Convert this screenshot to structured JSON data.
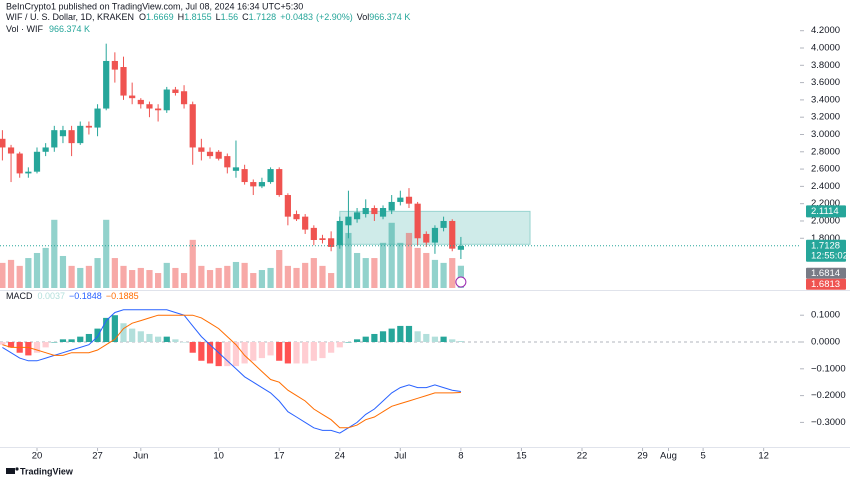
{
  "header": {
    "published": "BeInCrypto1 published on TradingView.com, Jul 08, 2024 16:34 UTC+5:30"
  },
  "chart_data": {
    "type": "candlestick",
    "symbol": "WIF / U. S. Dollar, 1D, KRAKEN",
    "ohlc_prefixes": [
      "O",
      "H",
      "L",
      "C"
    ],
    "open": [
      2.95,
      2.85,
      2.78,
      2.55,
      2.57,
      2.8,
      2.85,
      2.98,
      3.05,
      2.9,
      3.1,
      3.08,
      3.3,
      3.85,
      3.78,
      3.45,
      3.4,
      3.35,
      3.3,
      3.28,
      3.52,
      3.5,
      3.35,
      2.85,
      2.8,
      2.8,
      2.75,
      2.58,
      2.6,
      2.45,
      2.4,
      2.45,
      2.6,
      2.3,
      2.08,
      2.05,
      1.92,
      1.8,
      1.8,
      1.72,
      1.95,
      2.02,
      2.08,
      2.15,
      2.05,
      2.12,
      2.22,
      2.28,
      2.2,
      1.85,
      1.75,
      1.92,
      2.0,
      1.6669
    ],
    "high": [
      3.05,
      2.88,
      2.8,
      2.62,
      2.85,
      2.9,
      3.1,
      3.1,
      3.1,
      3.15,
      3.15,
      3.35,
      4.05,
      3.95,
      3.9,
      3.6,
      3.42,
      3.38,
      3.35,
      3.55,
      3.55,
      3.57,
      3.38,
      2.95,
      2.85,
      2.82,
      2.78,
      2.93,
      2.65,
      2.48,
      2.5,
      2.62,
      2.62,
      2.32,
      2.12,
      2.08,
      1.95,
      1.84,
      1.88,
      2.05,
      2.35,
      2.15,
      2.25,
      2.18,
      2.18,
      2.3,
      2.35,
      2.38,
      2.22,
      1.88,
      1.95,
      2.05,
      2.02,
      1.8155
    ],
    "low": [
      2.7,
      2.45,
      2.5,
      2.5,
      2.55,
      2.75,
      2.8,
      2.9,
      2.75,
      2.88,
      3.0,
      2.98,
      3.28,
      3.6,
      3.4,
      3.35,
      3.3,
      3.2,
      3.15,
      3.25,
      3.45,
      3.3,
      2.65,
      2.7,
      2.72,
      2.7,
      2.55,
      2.5,
      2.42,
      2.3,
      2.38,
      2.43,
      2.28,
      1.95,
      2.0,
      1.85,
      1.72,
      1.74,
      1.65,
      1.68,
      1.8,
      1.98,
      2.04,
      2.0,
      2.02,
      2.08,
      2.18,
      2.15,
      1.72,
      1.7,
      1.62,
      1.88,
      1.65,
      1.56
    ],
    "close": [
      2.85,
      2.78,
      2.55,
      2.57,
      2.8,
      2.85,
      3.05,
      3.05,
      2.9,
      3.1,
      3.08,
      3.3,
      3.85,
      3.75,
      3.45,
      3.42,
      3.35,
      3.3,
      3.28,
      3.52,
      3.48,
      3.35,
      2.85,
      2.8,
      2.75,
      2.72,
      2.62,
      2.62,
      2.45,
      2.4,
      2.45,
      2.6,
      2.3,
      2.05,
      2.02,
      1.9,
      1.78,
      1.78,
      1.7,
      2.0,
      2.05,
      2.1,
      2.15,
      2.08,
      2.15,
      2.22,
      2.27,
      2.2,
      1.8,
      1.75,
      1.92,
      2.0,
      1.68,
      1.7128
    ],
    "change": {
      "value": 0.0483,
      "label": "+0.0483"
    },
    "change_pct": {
      "value": 2.9,
      "label": "(+2.90%)"
    },
    "up_color": "#26a69a",
    "down_color": "#ef5350",
    "ylim": [
      1.225,
      4.555
    ],
    "yticks": [
      {
        "value": 4.2,
        "label": "4.2000"
      },
      {
        "value": 4.0,
        "label": "4.0000"
      },
      {
        "value": 3.8,
        "label": "3.8000"
      },
      {
        "value": 3.6,
        "label": "3.6000"
      },
      {
        "value": 3.4,
        "label": "3.4000"
      },
      {
        "value": 3.2,
        "label": "3.2000"
      },
      {
        "value": 3.0,
        "label": "3.0000"
      },
      {
        "value": 2.8,
        "label": "2.8000"
      },
      {
        "value": 2.6,
        "label": "2.6000"
      },
      {
        "value": 2.4,
        "label": "2.4000"
      },
      {
        "value": 2.2,
        "label": "2.2000"
      },
      {
        "value": 2.0,
        "label": "2.0000"
      },
      {
        "value": 1.8,
        "label": "1.8000"
      }
    ],
    "xlim": [
      -0.277,
      92.2
    ],
    "xticks": [
      {
        "value": 4,
        "label": "20"
      },
      {
        "value": 11,
        "label": "27"
      },
      {
        "value": 16,
        "label": "Jun"
      },
      {
        "value": 25,
        "label": "10"
      },
      {
        "value": 32,
        "label": "17"
      },
      {
        "value": 39,
        "label": "24"
      },
      {
        "value": 46,
        "label": "Jul"
      },
      {
        "value": 53,
        "label": "8"
      },
      {
        "value": 60,
        "label": "15"
      },
      {
        "value": 67,
        "label": "22"
      },
      {
        "value": 74,
        "label": "29"
      },
      {
        "value": 77,
        "label": "Aug"
      },
      {
        "value": 81,
        "label": "5"
      },
      {
        "value": 88,
        "label": "12"
      }
    ],
    "volume": {
      "prefix": "Vol",
      "name": "Vol · WIF",
      "last_label": "966.374 K",
      "ylim": [
        0,
        12500
      ],
      "values": [
        1090,
        1220,
        960,
        1300,
        1520,
        1740,
        2960,
        1390,
        960,
        870,
        960,
        1300,
        2960,
        1300,
        960,
        780,
        870,
        780,
        650,
        1090,
        870,
        650,
        2090,
        960,
        780,
        870,
        960,
        1130,
        1090,
        650,
        780,
        870,
        1650,
        960,
        870,
        1090,
        1300,
        960,
        650,
        1960,
        2390,
        1520,
        1300,
        1300,
        1960,
        2830,
        1960,
        2390,
        1740,
        1520,
        1220,
        1090,
        1300,
        966.374
      ]
    },
    "zone": {
      "top": 2.1114,
      "bottom": 1.73,
      "start": 39,
      "end": 61,
      "color": "#26a69a"
    },
    "countdown": "12:55:02",
    "price_labels": [
      {
        "value": 2.1114,
        "color": "#26a69a"
      },
      {
        "value": 1.6814,
        "color": "#787b86"
      },
      {
        "value": 1.6813,
        "color": "#ef5350"
      }
    ],
    "macd": {
      "name": "MACD",
      "macd_color": "#2962ff",
      "signal_color": "#ff6d00",
      "value_labels": {
        "hist": "0.0037",
        "macd": "−0.1848",
        "signal": "−0.1885"
      },
      "hist": [
        -0.01,
        -0.02,
        -0.04,
        -0.05,
        -0.04,
        -0.02,
        0.0,
        0.01,
        0.01,
        0.02,
        0.03,
        0.05,
        0.09,
        0.1,
        0.07,
        0.05,
        0.04,
        0.03,
        0.02,
        0.02,
        0.01,
        0.0,
        -0.04,
        -0.07,
        -0.08,
        -0.09,
        -0.09,
        -0.09,
        -0.08,
        -0.07,
        -0.06,
        -0.05,
        -0.07,
        -0.08,
        -0.08,
        -0.08,
        -0.07,
        -0.06,
        -0.04,
        -0.02,
        0.0,
        0.01,
        0.02,
        0.03,
        0.04,
        0.05,
        0.06,
        0.06,
        0.04,
        0.03,
        0.02,
        0.02,
        0.01,
        0.0037
      ],
      "macd": [
        -0.02,
        -0.04,
        -0.06,
        -0.07,
        -0.07,
        -0.06,
        -0.05,
        -0.04,
        -0.03,
        -0.02,
        -0.01,
        0.02,
        0.08,
        0.11,
        0.12,
        0.12,
        0.12,
        0.12,
        0.12,
        0.12,
        0.11,
        0.1,
        0.06,
        0.02,
        -0.01,
        -0.04,
        -0.07,
        -0.1,
        -0.13,
        -0.15,
        -0.17,
        -0.19,
        -0.22,
        -0.26,
        -0.28,
        -0.3,
        -0.32,
        -0.33,
        -0.33,
        -0.34,
        -0.32,
        -0.3,
        -0.27,
        -0.25,
        -0.22,
        -0.19,
        -0.17,
        -0.16,
        -0.17,
        -0.17,
        -0.16,
        -0.17,
        -0.18,
        -0.1848
      ],
      "signal": [
        -0.01,
        -0.02,
        -0.02,
        -0.02,
        -0.03,
        -0.04,
        -0.05,
        -0.05,
        -0.04,
        -0.04,
        -0.04,
        -0.03,
        -0.01,
        0.01,
        0.05,
        0.07,
        0.08,
        0.09,
        0.1,
        0.1,
        0.1,
        0.1,
        0.1,
        0.09,
        0.07,
        0.05,
        0.02,
        -0.01,
        -0.05,
        -0.08,
        -0.11,
        -0.14,
        -0.15,
        -0.18,
        -0.2,
        -0.22,
        -0.25,
        -0.27,
        -0.29,
        -0.32,
        -0.32,
        -0.31,
        -0.29,
        -0.28,
        -0.26,
        -0.24,
        -0.23,
        -0.22,
        -0.21,
        -0.2,
        -0.19,
        -0.19,
        -0.19,
        -0.1885
      ],
      "ylim": [
        -0.3955,
        0.1866
      ],
      "yticks": [
        {
          "value": 0.1,
          "label": "0.1000"
        },
        {
          "value": 0,
          "label": "0.0000"
        },
        {
          "value": -0.1,
          "label": "−0.1000"
        },
        {
          "value": -0.2,
          "label": "−0.2000"
        },
        {
          "value": -0.3,
          "label": "−0.3000"
        }
      ]
    }
  },
  "footer": {
    "brand": "TradingView"
  }
}
